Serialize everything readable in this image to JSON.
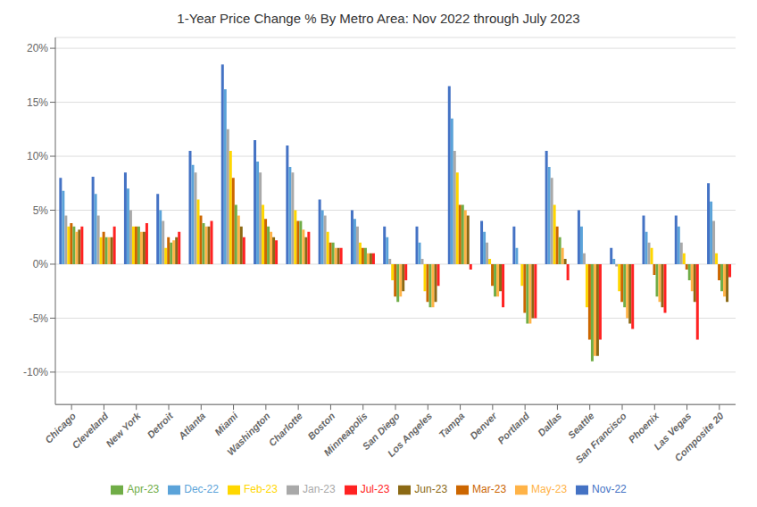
{
  "chart_data": {
    "type": "bar",
    "title": "1-Year Price Change % By Metro Area: Nov 2022 through July 2023",
    "categories": [
      "Chicago",
      "Cleveland",
      "New York",
      "Detroit",
      "Atlanta",
      "Miami",
      "Washington",
      "Charlotte",
      "Boston",
      "Minneapolis",
      "San Diego",
      "Los Angeles",
      "Tampa",
      "Denver",
      "Portland",
      "Dallas",
      "Seattle",
      "San Francisco",
      "Phoenix",
      "Las Vegas",
      "Composite 20"
    ],
    "series": [
      {
        "name": "Nov-22",
        "color": "#4472C4",
        "values": [
          8.0,
          8.1,
          8.5,
          6.5,
          10.5,
          18.5,
          11.5,
          11.0,
          6.0,
          5.0,
          3.5,
          3.5,
          16.5,
          4.0,
          3.5,
          10.5,
          5.0,
          1.5,
          4.5,
          4.5,
          7.5
        ]
      },
      {
        "name": "Dec-22",
        "color": "#5BA3D9",
        "values": [
          6.8,
          6.5,
          7.0,
          5.0,
          9.2,
          16.2,
          9.5,
          9.0,
          5.0,
          4.2,
          2.5,
          2.0,
          13.5,
          3.0,
          1.5,
          9.0,
          3.5,
          0.5,
          3.0,
          3.5,
          5.8
        ]
      },
      {
        "name": "Jan-23",
        "color": "#A9A9A9",
        "values": [
          4.5,
          4.5,
          5.0,
          4.0,
          8.5,
          12.5,
          8.5,
          8.5,
          4.5,
          3.5,
          0.5,
          0.5,
          10.5,
          2.0,
          0.0,
          8.0,
          1.0,
          -0.2,
          2.0,
          2.0,
          4.0
        ]
      },
      {
        "name": "Feb-23",
        "color": "#FFD700",
        "values": [
          3.5,
          2.5,
          3.5,
          1.5,
          6.0,
          10.5,
          5.5,
          5.0,
          3.0,
          2.0,
          -1.5,
          -2.5,
          8.5,
          0.5,
          -2.0,
          5.5,
          -4.0,
          -2.5,
          1.5,
          1.0,
          1.0
        ]
      },
      {
        "name": "Mar-23",
        "color": "#CC6600",
        "values": [
          3.8,
          3.0,
          3.5,
          2.5,
          4.5,
          8.0,
          4.2,
          4.0,
          2.0,
          1.5,
          -3.0,
          -3.5,
          5.5,
          -2.0,
          -4.5,
          3.5,
          -7.0,
          -3.5,
          -1.0,
          -0.5,
          -1.5
        ]
      },
      {
        "name": "Apr-23",
        "color": "#70AD47",
        "values": [
          3.5,
          2.5,
          3.5,
          2.0,
          3.8,
          5.5,
          3.5,
          4.0,
          2.0,
          1.5,
          -3.5,
          -4.0,
          5.5,
          -3.0,
          -5.5,
          2.5,
          -9.0,
          -4.0,
          -3.0,
          -1.5,
          -2.5
        ]
      },
      {
        "name": "May-23",
        "color": "#FFB347",
        "values": [
          3.0,
          2.5,
          3.0,
          2.2,
          3.5,
          4.5,
          3.0,
          3.2,
          1.5,
          1.0,
          -3.0,
          -4.0,
          5.0,
          -3.0,
          -5.5,
          1.5,
          -8.5,
          -5.0,
          -3.5,
          -2.5,
          -3.0
        ]
      },
      {
        "name": "Jun-23",
        "color": "#8B6914",
        "values": [
          3.2,
          2.5,
          3.0,
          2.5,
          3.5,
          3.5,
          2.5,
          2.5,
          1.5,
          1.0,
          -2.5,
          -3.5,
          4.5,
          -2.5,
          -5.0,
          0.5,
          -8.5,
          -5.5,
          -4.0,
          -3.5,
          -3.5
        ]
      },
      {
        "name": "Jul-23",
        "color": "#FF2222",
        "values": [
          3.5,
          3.5,
          3.8,
          3.0,
          4.0,
          2.5,
          2.2,
          3.0,
          1.5,
          1.0,
          -1.5,
          -2.0,
          -0.5,
          -4.0,
          -5.0,
          -1.5,
          -7.0,
          -6.0,
          -4.5,
          -7.0,
          -1.2
        ]
      }
    ],
    "ylim": [
      -13,
      21
    ],
    "yticks": [
      {
        "value": -10,
        "label": "-10%"
      },
      {
        "value": -5,
        "label": "-5%"
      },
      {
        "value": 0,
        "label": "0%"
      },
      {
        "value": 5,
        "label": "5%"
      },
      {
        "value": 10,
        "label": "10%"
      },
      {
        "value": 15,
        "label": "15%"
      },
      {
        "value": 20,
        "label": "20%"
      }
    ],
    "grid": true,
    "legend": "bottom"
  }
}
